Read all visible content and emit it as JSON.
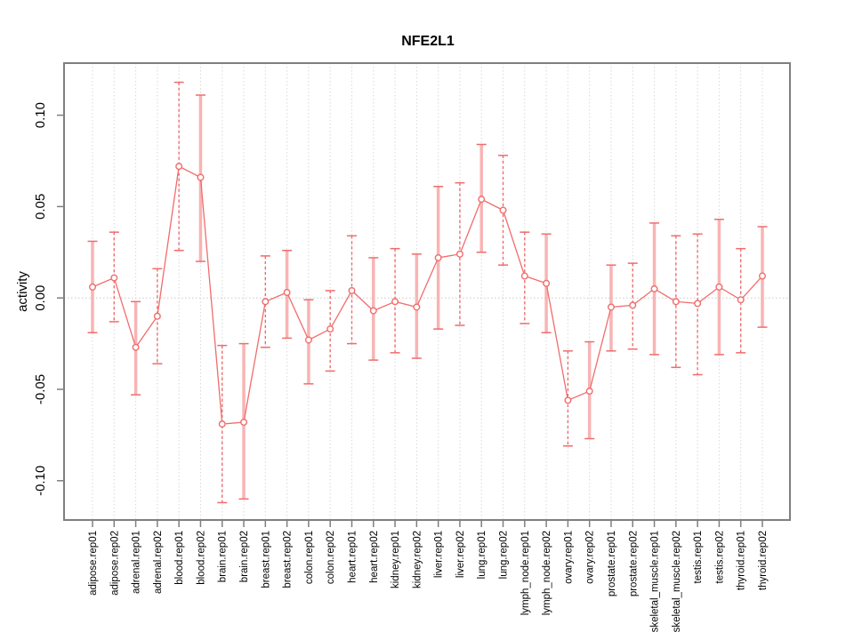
{
  "colors": {
    "accent_red": "#f06c6c",
    "error_bar_solid_fill": "#f8b4b4",
    "grid": "#d9d9d9",
    "zero_line": "#c9c9c9",
    "frame": "#7f7f7f",
    "tick": "#7f7f7f",
    "text": "#000000",
    "background": "#ffffff"
  },
  "chart_data": {
    "type": "line",
    "title": "NFE2L1",
    "xlabel": "",
    "ylabel": "activity",
    "ylim": [
      -0.1215,
      0.1285
    ],
    "ytick_labels": [
      "0.10",
      "0.05",
      "0.00",
      "-0.05",
      "-0.10"
    ],
    "ytick_values": [
      0.1,
      0.05,
      0.0,
      -0.05,
      -0.1
    ],
    "grid": "dotted vertical gridline per category, dotted horizontal line at y=0",
    "legend": "none",
    "point_style": "open circle, red",
    "categories": [
      "adipose.rep01",
      "adipose.rep02",
      "adrenal.rep01",
      "adrenal.rep02",
      "blood.rep01",
      "blood.rep02",
      "brain.rep01",
      "brain.rep02",
      "breast.rep01",
      "breast.rep02",
      "colon.rep01",
      "colon.rep02",
      "heart.rep01",
      "heart.rep02",
      "kidney.rep01",
      "kidney.rep02",
      "liver.rep01",
      "liver.rep02",
      "lung.rep01",
      "lung.rep02",
      "lymph_node.rep01",
      "lymph_node.rep02",
      "ovary.rep01",
      "ovary.rep02",
      "prostate.rep01",
      "prostate.rep02",
      "skeletal_muscle.rep01",
      "skeletal_muscle.rep02",
      "testis.rep01",
      "testis.rep02",
      "thyroid.rep01",
      "thyroid.rep02"
    ],
    "series": [
      {
        "name": "NFE2L1 activity",
        "values": [
          0.006,
          0.011,
          -0.027,
          -0.01,
          0.072,
          0.066,
          -0.069,
          -0.068,
          -0.002,
          0.003,
          -0.023,
          -0.017,
          0.004,
          -0.007,
          -0.002,
          -0.005,
          0.022,
          0.024,
          0.054,
          0.048,
          0.012,
          0.008,
          -0.056,
          -0.051,
          -0.005,
          -0.004,
          0.005,
          -0.002,
          -0.003,
          0.006,
          -0.001,
          0.012
        ],
        "error_upper": [
          0.031,
          0.036,
          -0.002,
          0.016,
          0.118,
          0.111,
          -0.026,
          -0.025,
          0.023,
          0.026,
          -0.001,
          0.004,
          0.034,
          0.022,
          0.027,
          0.024,
          0.061,
          0.063,
          0.084,
          0.078,
          0.036,
          0.035,
          -0.029,
          -0.024,
          0.018,
          0.019,
          0.041,
          0.034,
          0.035,
          0.043,
          0.027,
          0.039
        ],
        "error_lower": [
          -0.019,
          -0.013,
          -0.053,
          -0.036,
          0.026,
          0.02,
          -0.112,
          -0.11,
          -0.027,
          -0.022,
          -0.047,
          -0.04,
          -0.025,
          -0.034,
          -0.03,
          -0.033,
          -0.017,
          -0.015,
          0.025,
          0.018,
          -0.014,
          -0.019,
          -0.081,
          -0.077,
          -0.029,
          -0.028,
          -0.031,
          -0.038,
          -0.042,
          -0.031,
          -0.03,
          -0.016
        ],
        "error_bar_styles": [
          "solid",
          "dashed",
          "solid",
          "dashed",
          "dashed",
          "solid",
          "dashed",
          "solid",
          "dashed",
          "solid",
          "solid",
          "dashed",
          "dashed",
          "solid",
          "dashed",
          "solid",
          "solid",
          "dashed",
          "solid",
          "dashed",
          "dashed",
          "solid",
          "dashed",
          "solid",
          "solid",
          "dashed",
          "solid",
          "dashed",
          "dashed",
          "solid",
          "dashed",
          "solid"
        ]
      }
    ]
  }
}
